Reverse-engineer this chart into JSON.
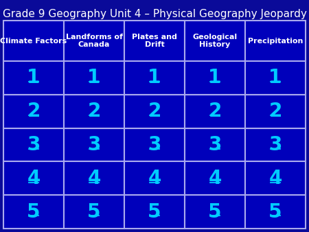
{
  "title": "Grade 9 Geography Unit 4 – Physical Geography Jeopardy",
  "title_color": "#ffffff",
  "title_fontsize": 11,
  "background_color": "#0a0a99",
  "cell_bg": "#0000bb",
  "header_text_color": "#ffffff",
  "number_text_color": "#00ccff",
  "grid_line_color": "#5555cc",
  "border_color": "#aaaaee",
  "columns": [
    "Climate Factors",
    "Landforms of\nCanada",
    "Plates and\nDrift",
    "Geological\nHistory",
    "Precipitation"
  ],
  "rows": [
    "1",
    "2",
    "3",
    "4",
    "5"
  ],
  "header_fontsize": 8,
  "number_fontsize": 20
}
